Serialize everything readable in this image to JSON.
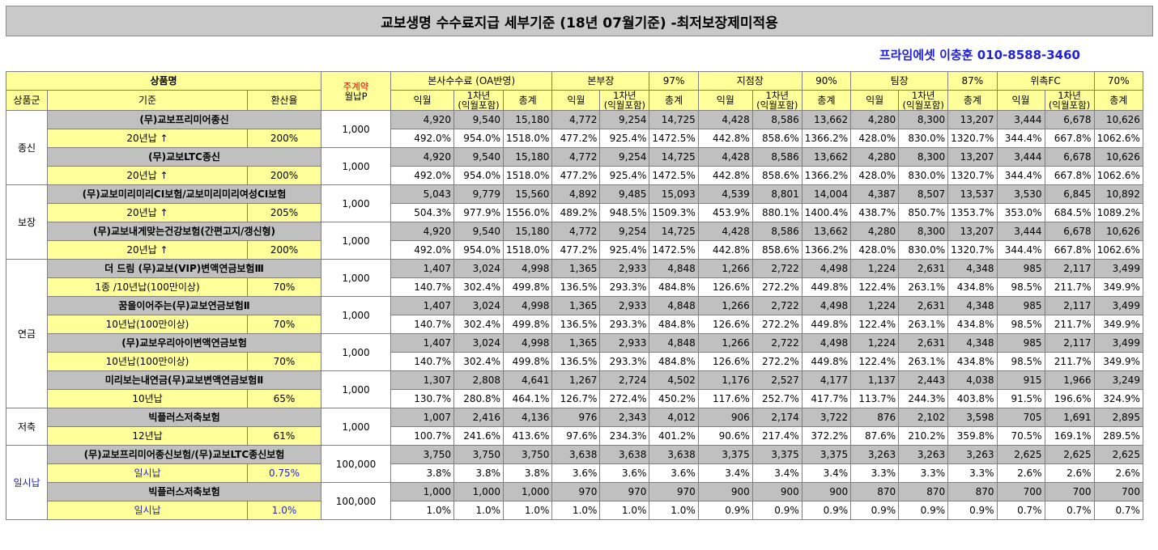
{
  "title": "교보생명 수수료지급 세부기준 (18년 07월기준) -최저보장제미적용",
  "contact": "프라임에셋 이충훈 010-8588-3460",
  "header": {
    "product_name": "상품명",
    "main_contract_line1": "주계약",
    "main_contract_line2": "월납P",
    "group": "상품군",
    "criteria": "기준",
    "conversion": "환산율",
    "sub_monthly": "익월",
    "sub_first_year_line1": "1차년",
    "sub_first_year_line2": "(익월포함)",
    "sub_total": "총계",
    "sections": [
      {
        "label": "본사수수료 (OA반영)",
        "rate": ""
      },
      {
        "label": "본부장",
        "rate": "97%"
      },
      {
        "label": "지점장",
        "rate": "90%"
      },
      {
        "label": "팀장",
        "rate": "87%"
      },
      {
        "label": "위촉FC",
        "rate": "70%"
      }
    ]
  },
  "groups": [
    {
      "name": "종신",
      "products": [
        {
          "name": "(무)교보프리미어종신",
          "criteria": "20년납 ↑",
          "rate": "200%",
          "premium": "1,000",
          "amounts": [
            "4,920",
            "9,540",
            "15,180",
            "4,772",
            "9,254",
            "14,725",
            "4,428",
            "8,586",
            "13,662",
            "4,280",
            "8,300",
            "13,207",
            "3,444",
            "6,678",
            "10,626"
          ],
          "percents": [
            "492.0%",
            "954.0%",
            "1518.0%",
            "477.2%",
            "925.4%",
            "1472.5%",
            "442.8%",
            "858.6%",
            "1366.2%",
            "428.0%",
            "830.0%",
            "1320.7%",
            "344.4%",
            "667.8%",
            "1062.6%"
          ]
        },
        {
          "name": "(무)교보LTC종신",
          "criteria": "20년납 ↑",
          "rate": "200%",
          "premium": "1,000",
          "amounts": [
            "4,920",
            "9,540",
            "15,180",
            "4,772",
            "9,254",
            "14,725",
            "4,428",
            "8,586",
            "13,662",
            "4,280",
            "8,300",
            "13,207",
            "3,444",
            "6,678",
            "10,626"
          ],
          "percents": [
            "492.0%",
            "954.0%",
            "1518.0%",
            "477.2%",
            "925.4%",
            "1472.5%",
            "442.8%",
            "858.6%",
            "1366.2%",
            "428.0%",
            "830.0%",
            "1320.7%",
            "344.4%",
            "667.8%",
            "1062.6%"
          ]
        }
      ]
    },
    {
      "name": "보장",
      "products": [
        {
          "name": "(무)교보미리미리CI보험/교보미리미리여성CI보험",
          "criteria": "20년납 ↑",
          "rate": "205%",
          "premium": "1,000",
          "amounts": [
            "5,043",
            "9,779",
            "15,560",
            "4,892",
            "9,485",
            "15,093",
            "4,539",
            "8,801",
            "14,004",
            "4,387",
            "8,507",
            "13,537",
            "3,530",
            "6,845",
            "10,892"
          ],
          "percents": [
            "504.3%",
            "977.9%",
            "1556.0%",
            "489.2%",
            "948.5%",
            "1509.3%",
            "453.9%",
            "880.1%",
            "1400.4%",
            "438.7%",
            "850.7%",
            "1353.7%",
            "353.0%",
            "684.5%",
            "1089.2%"
          ]
        },
        {
          "name": "(무)교보내게맞는건강보험(간편고지/갱신형)",
          "criteria": "20년납 ↑",
          "rate": "200%",
          "premium": "1,000",
          "amounts": [
            "4,920",
            "9,540",
            "15,180",
            "4,772",
            "9,254",
            "14,725",
            "4,428",
            "8,586",
            "13,662",
            "4,280",
            "8,300",
            "13,207",
            "3,444",
            "6,678",
            "10,626"
          ],
          "percents": [
            "492.0%",
            "954.0%",
            "1518.0%",
            "477.2%",
            "925.4%",
            "1472.5%",
            "442.8%",
            "858.6%",
            "1366.2%",
            "428.0%",
            "830.0%",
            "1320.7%",
            "344.4%",
            "667.8%",
            "1062.6%"
          ]
        }
      ]
    },
    {
      "name": "연금",
      "products": [
        {
          "name": "더 드림 (무)교보(VIP)변액연금보험Ⅲ",
          "criteria": "1종 /10년납(100만이상)",
          "rate": "70%",
          "premium": "1,000",
          "amounts": [
            "1,407",
            "3,024",
            "4,998",
            "1,365",
            "2,933",
            "4,848",
            "1,266",
            "2,722",
            "4,498",
            "1,224",
            "2,631",
            "4,348",
            "985",
            "2,117",
            "3,499"
          ],
          "percents": [
            "140.7%",
            "302.4%",
            "499.8%",
            "136.5%",
            "293.3%",
            "484.8%",
            "126.6%",
            "272.2%",
            "449.8%",
            "122.4%",
            "263.1%",
            "434.8%",
            "98.5%",
            "211.7%",
            "349.9%"
          ]
        },
        {
          "name": "꿈을이어주는(무)교보연금보험Ⅱ",
          "criteria": "10년납(100만이상)",
          "rate": "70%",
          "premium": "1,000",
          "amounts": [
            "1,407",
            "3,024",
            "4,998",
            "1,365",
            "2,933",
            "4,848",
            "1,266",
            "2,722",
            "4,498",
            "1,224",
            "2,631",
            "4,348",
            "985",
            "2,117",
            "3,499"
          ],
          "percents": [
            "140.7%",
            "302.4%",
            "499.8%",
            "136.5%",
            "293.3%",
            "484.8%",
            "126.6%",
            "272.2%",
            "449.8%",
            "122.4%",
            "263.1%",
            "434.8%",
            "98.5%",
            "211.7%",
            "349.9%"
          ]
        },
        {
          "name": "(무)교보우리아이변액연금보험",
          "criteria": "10년납(100만이상)",
          "rate": "70%",
          "premium": "1,000",
          "amounts": [
            "1,407",
            "3,024",
            "4,998",
            "1,365",
            "2,933",
            "4,848",
            "1,266",
            "2,722",
            "4,498",
            "1,224",
            "2,631",
            "4,348",
            "985",
            "2,117",
            "3,499"
          ],
          "percents": [
            "140.7%",
            "302.4%",
            "499.8%",
            "136.5%",
            "293.3%",
            "484.8%",
            "126.6%",
            "272.2%",
            "449.8%",
            "122.4%",
            "263.1%",
            "434.8%",
            "98.5%",
            "211.7%",
            "349.9%"
          ]
        },
        {
          "name": "미리보는내연금(무)교보변액연금보험Ⅱ",
          "criteria": "10년납",
          "rate": "65%",
          "premium": "1,000",
          "amounts": [
            "1,307",
            "2,808",
            "4,641",
            "1,267",
            "2,724",
            "4,502",
            "1,176",
            "2,527",
            "4,177",
            "1,137",
            "2,443",
            "4,038",
            "915",
            "1,966",
            "3,249"
          ],
          "percents": [
            "130.7%",
            "280.8%",
            "464.1%",
            "126.7%",
            "272.4%",
            "450.2%",
            "117.6%",
            "252.7%",
            "417.7%",
            "113.7%",
            "244.3%",
            "403.8%",
            "91.5%",
            "196.6%",
            "324.9%"
          ]
        }
      ]
    },
    {
      "name": "저축",
      "products": [
        {
          "name": "빅플러스저축보험",
          "criteria": "12년납",
          "rate": "61%",
          "premium": "1,000",
          "amounts": [
            "1,007",
            "2,416",
            "4,136",
            "976",
            "2,343",
            "4,012",
            "906",
            "2,174",
            "3,722",
            "876",
            "2,102",
            "3,598",
            "705",
            "1,691",
            "2,895"
          ],
          "percents": [
            "100.7%",
            "241.6%",
            "413.6%",
            "97.6%",
            "234.3%",
            "401.2%",
            "90.6%",
            "217.4%",
            "372.2%",
            "87.6%",
            "210.2%",
            "359.8%",
            "70.5%",
            "169.1%",
            "289.5%"
          ]
        }
      ]
    },
    {
      "name": "일시납",
      "products": [
        {
          "name": "(무)교보프리미어종신보험/(무)교보LTC종신보험",
          "criteria": "일시납",
          "rate": "0.75%",
          "premium": "100,000",
          "amounts": [
            "3,750",
            "3,750",
            "3,750",
            "3,638",
            "3,638",
            "3,638",
            "3,375",
            "3,375",
            "3,375",
            "3,263",
            "3,263",
            "3,263",
            "2,625",
            "2,625",
            "2,625"
          ],
          "percents": [
            "3.8%",
            "3.8%",
            "3.8%",
            "3.6%",
            "3.6%",
            "3.6%",
            "3.4%",
            "3.4%",
            "3.4%",
            "3.3%",
            "3.3%",
            "3.3%",
            "2.6%",
            "2.6%",
            "2.6%"
          ]
        },
        {
          "name": "빅플러스저축보험",
          "criteria": "일시납",
          "rate": "1.0%",
          "premium": "100,000",
          "amounts": [
            "1,000",
            "1,000",
            "1,000",
            "970",
            "970",
            "970",
            "900",
            "900",
            "900",
            "870",
            "870",
            "870",
            "700",
            "700",
            "700"
          ],
          "percents": [
            "1.0%",
            "1.0%",
            "1.0%",
            "1.0%",
            "1.0%",
            "1.0%",
            "0.9%",
            "0.9%",
            "0.9%",
            "0.9%",
            "0.9%",
            "0.9%",
            "0.7%",
            "0.7%",
            "0.7%"
          ]
        }
      ]
    }
  ]
}
